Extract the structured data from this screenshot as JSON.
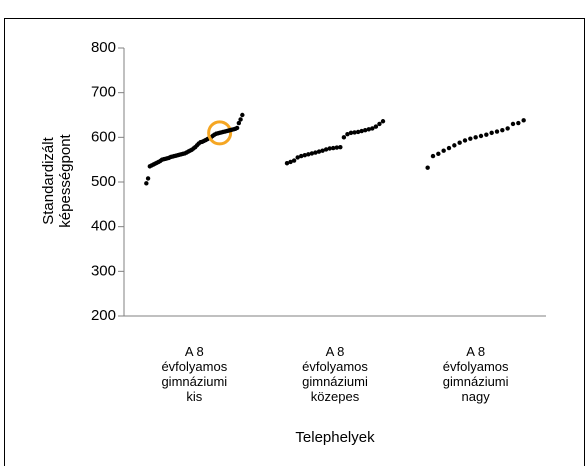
{
  "chart_data": {
    "type": "strip",
    "y_label": "Standardizált\nképességpont",
    "x_label": "Telephelyek",
    "categories": [
      "A 8\névfolyamos\ngimnáziumi\nkis",
      "A 8\névfolyamos\ngimnáziumi\nközepes",
      "A 8\névfolyamos\ngimnáziumi\nnagy"
    ],
    "values": [
      [
        497,
        508,
        535,
        537,
        539,
        541,
        543,
        545,
        547,
        550,
        551,
        552,
        553,
        554,
        556,
        557,
        558,
        559,
        560,
        561,
        562,
        563,
        564,
        566,
        568,
        570,
        572,
        575,
        578,
        582,
        586,
        589,
        590,
        592,
        594,
        596,
        598,
        600,
        603,
        606,
        608,
        609,
        610,
        611,
        612,
        613,
        614,
        615,
        616,
        617,
        618,
        619,
        621,
        632,
        640,
        650
      ],
      [
        542,
        545,
        548,
        555,
        558,
        560,
        562,
        564,
        566,
        568,
        570,
        573,
        575,
        576,
        577,
        578,
        600,
        607,
        610,
        611,
        612,
        614,
        616,
        618,
        620,
        624,
        630,
        636
      ],
      [
        532,
        558,
        563,
        570,
        576,
        582,
        588,
        593,
        597,
        600,
        603,
        606,
        610,
        613,
        616,
        620,
        630,
        632,
        638
      ]
    ],
    "color": "#000000",
    "highlight": {
      "category": 0,
      "index": 42,
      "color": "#f5a623"
    },
    "ylim": [
      200,
      800
    ],
    "yticks": [
      200,
      300,
      400,
      500,
      600,
      700,
      800
    ]
  }
}
